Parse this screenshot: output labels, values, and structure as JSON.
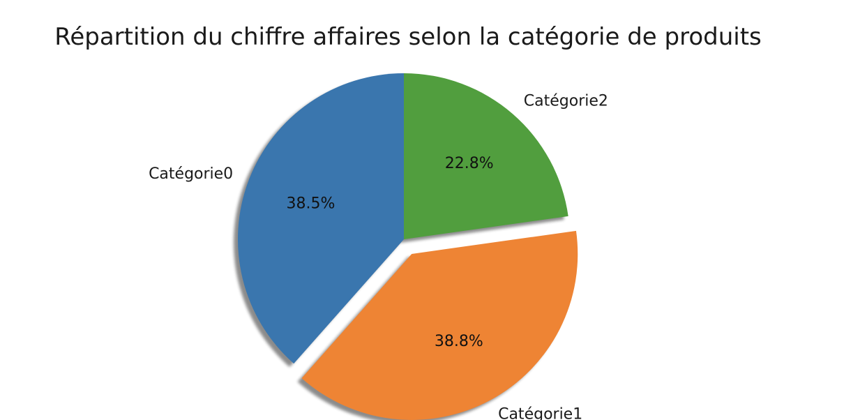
{
  "chart_data": {
    "type": "pie",
    "title": "Répartition du chiffre affaires selon la catégorie de produits",
    "start_angle_deg": 90,
    "direction": "counterclockwise",
    "shadow": true,
    "slices": [
      {
        "label": "Catégorie0",
        "value": 38.5,
        "pct_label": "38.5%",
        "color": "#3a76ae",
        "explode": 0
      },
      {
        "label": "Catégorie1",
        "value": 38.8,
        "pct_label": "38.8%",
        "color": "#ee8434",
        "explode": 0.1
      },
      {
        "label": "Catégorie2",
        "value": 22.8,
        "pct_label": "22.8%",
        "color": "#519e3e",
        "explode": 0
      }
    ]
  }
}
